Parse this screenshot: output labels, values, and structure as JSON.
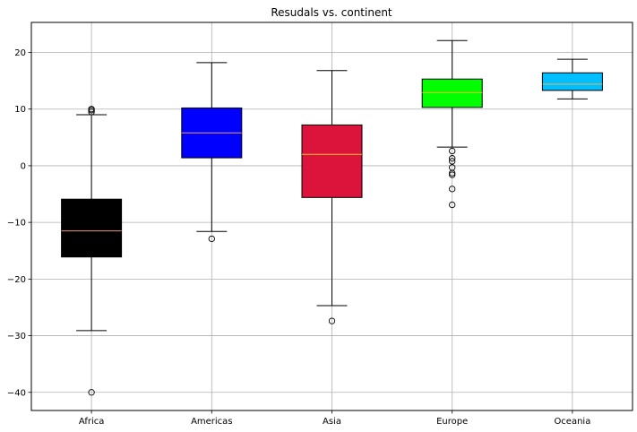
{
  "chart_data": {
    "type": "box",
    "title": "Resudals vs. continent",
    "xlabel": "",
    "ylabel": "",
    "ylim": [
      -43.2,
      25.3
    ],
    "yticks": [
      20,
      10,
      0,
      -10,
      -20,
      -30,
      -40
    ],
    "ytick_labels": [
      "20",
      "10",
      "0",
      "−10",
      "−20",
      "−30",
      "−40"
    ],
    "grid": true,
    "categories": [
      "Africa",
      "Americas",
      "Asia",
      "Europe",
      "Oceania"
    ],
    "boxes": [
      {
        "name": "Africa",
        "color": "#000000",
        "median_color": "#e9967a",
        "whisker_low": -29.1,
        "q1": -16.1,
        "median": -11.5,
        "q3": -5.9,
        "whisker_high": 9.0,
        "outliers": [
          9.5,
          9.8,
          10.0,
          -40.0
        ]
      },
      {
        "name": "Americas",
        "color": "#0000ff",
        "median_color": "#f0a060",
        "whisker_low": -11.6,
        "q1": 1.4,
        "median": 5.8,
        "q3": 10.2,
        "whisker_high": 18.2,
        "outliers": [
          -12.9
        ]
      },
      {
        "name": "Asia",
        "color": "#dc143c",
        "median_color": "#f4c430",
        "whisker_low": -24.7,
        "q1": -5.6,
        "median": 2.0,
        "q3": 7.2,
        "whisker_high": 16.8,
        "outliers": [
          -27.4
        ]
      },
      {
        "name": "Europe",
        "color": "#00ff00",
        "median_color": "#e8c020",
        "whisker_low": 3.3,
        "q1": 10.3,
        "median": 12.9,
        "q3": 15.3,
        "whisker_high": 22.1,
        "outliers": [
          2.6,
          1.3,
          0.8,
          -0.3,
          -1.3,
          -1.6,
          -4.1,
          -6.9
        ]
      },
      {
        "name": "Oceania",
        "color": "#00bfff",
        "median_color": "#f0b050",
        "whisker_low": 11.8,
        "q1": 13.3,
        "median": 14.4,
        "q3": 16.4,
        "whisker_high": 18.8,
        "outliers": []
      }
    ]
  }
}
